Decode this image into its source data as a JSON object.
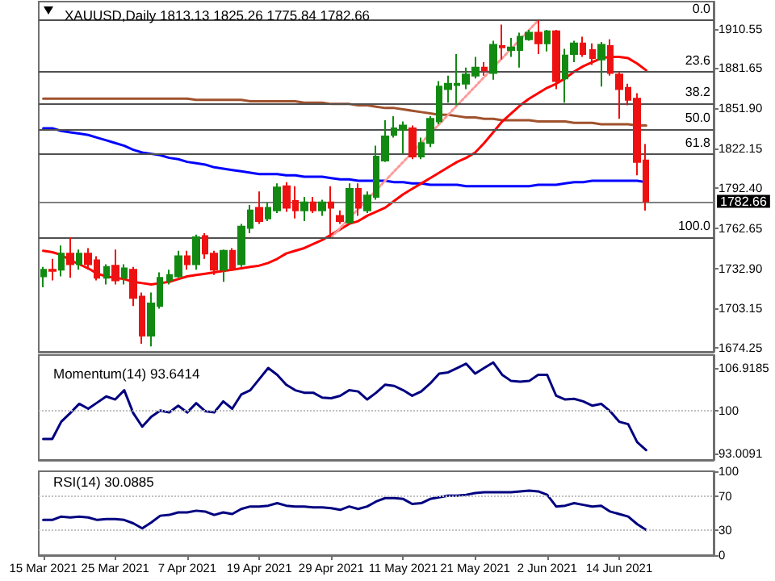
{
  "chart_data": [
    {
      "type": "candlestick",
      "title": "XAUUSD,Daily 1813.13 1825.26 1775.84 1782.66",
      "categories": [
        null,
        null,
        null,
        null,
        null,
        null,
        null,
        null,
        null,
        null,
        null,
        null,
        null,
        null,
        null,
        null,
        null,
        null,
        null,
        null,
        null,
        null,
        null,
        null,
        null,
        null,
        null,
        null,
        null,
        null,
        null,
        null,
        null,
        null,
        null,
        null,
        null,
        null,
        null,
        null,
        null,
        null,
        null,
        null,
        null,
        null,
        null,
        null,
        null,
        null,
        null,
        null,
        null,
        null,
        null,
        null,
        null,
        null,
        null,
        null,
        null,
        null,
        null,
        null,
        null,
        null,
        null,
        null
      ],
      "ylim": [
        1671,
        1931
      ],
      "yticks": [
        1910.55,
        1881.65,
        {
          "value": 1851.9,
          "label": "1851.90"
        },
        1822.15,
        {
          "value": 1792.4,
          "label": "1792.40"
        },
        1762.65,
        {
          "value": 1732.9,
          "label": "1732.90"
        },
        1703.15,
        1674.25
      ],
      "tick_labels": "y",
      "marker": "none",
      "line_style": "solid",
      "series": [
        {
          "type": "line",
          "color": "#0000ff",
          "values": [
            1837,
            1837,
            1835,
            1834,
            1833,
            1832,
            1830,
            1828,
            1826,
            1824,
            1821,
            1819,
            1818,
            1817,
            1815,
            1814,
            1812,
            1811,
            1810,
            1808,
            1807,
            1806,
            1805,
            1804,
            1803,
            1803,
            1803,
            1802,
            1802,
            1801,
            1801,
            1801,
            1800,
            1799,
            1799,
            1798,
            1798,
            1798,
            1798,
            1797,
            1797,
            1796,
            1796,
            1795,
            1795,
            1795,
            1795,
            1794,
            1794,
            1794,
            1794,
            1794,
            1794,
            1794,
            1794,
            1795,
            1795,
            1795,
            1796,
            1797,
            1797,
            1798,
            1798,
            1798,
            1798,
            1798,
            1798,
            1797
          ]
        },
        {
          "type": "line",
          "color": "#a0522d",
          "values": [
            1859,
            1859,
            1859,
            1859,
            1859,
            1859,
            1859,
            1859,
            1859,
            1859,
            1859,
            1859,
            1859,
            1859,
            1859,
            1859,
            1859,
            1858,
            1858,
            1858,
            1858,
            1858,
            1858,
            1857,
            1857,
            1857,
            1857,
            1857,
            1857,
            1856,
            1856,
            1856,
            1855,
            1855,
            1855,
            1854,
            1854,
            1853,
            1852,
            1852,
            1851,
            1850,
            1849,
            1848,
            1847,
            1847,
            1846,
            1845,
            1845,
            1844,
            1844,
            1843,
            1843,
            1843,
            1843,
            1842,
            1842,
            1842,
            1842,
            1841,
            1841,
            1841,
            1840,
            1840,
            1840,
            1840,
            1839,
            1839
          ]
        },
        {
          "type": "line",
          "color": "#ff0000",
          "values": [
            1746,
            1745,
            1743,
            1739,
            1736,
            1733,
            1729,
            1727,
            1726,
            1725,
            1723,
            1722,
            1721,
            1722,
            1723,
            1725,
            1727,
            1728,
            1729,
            1730,
            1731,
            1732,
            1733,
            1734,
            1735,
            1737,
            1740,
            1744,
            1746,
            1748,
            1751,
            1754,
            1758,
            1762,
            1766,
            1768,
            1772,
            1775,
            1778,
            1783,
            1788,
            1792,
            1796,
            1800,
            1804,
            1808,
            1812,
            1815,
            1819,
            1826,
            1834,
            1842,
            1848,
            1854,
            1859,
            1863,
            1867,
            1870,
            1874,
            1879,
            1883,
            1886,
            1889,
            1890,
            1890,
            1889,
            1885,
            1880
          ]
        },
        {
          "type": "line",
          "color": "#ff9999",
          "line_style": "dotted",
          "values": [
            null,
            null,
            null,
            null,
            null,
            null,
            null,
            null,
            null,
            null,
            null,
            null,
            null,
            null,
            null,
            null,
            null,
            null,
            null,
            null,
            null,
            null,
            null,
            null,
            null,
            null,
            null,
            null,
            null,
            null,
            null,
            null,
            1756,
            null,
            null,
            null,
            null,
            null,
            null,
            null,
            null,
            null,
            null,
            null,
            null,
            null,
            null,
            null,
            null,
            null,
            null,
            null,
            null,
            null,
            null,
            1917,
            null,
            null,
            null,
            null,
            null,
            null,
            null,
            null,
            null,
            null,
            null,
            null
          ]
        }
      ],
      "ohlc": [
        [
          1727,
          1734,
          1719,
          1732
        ],
        [
          1732,
          1740,
          1724,
          1731
        ],
        [
          1732,
          1750,
          1727,
          1744
        ],
        [
          1744,
          1756,
          1726,
          1736
        ],
        [
          1736,
          1747,
          1732,
          1744
        ],
        [
          1744,
          1748,
          1732,
          1736
        ],
        [
          1739,
          1742,
          1724,
          1726
        ],
        [
          1726,
          1736,
          1721,
          1734
        ],
        [
          1735,
          1747,
          1721,
          1724
        ],
        [
          1726,
          1736,
          1721,
          1733
        ],
        [
          1732,
          1734,
          1705,
          1711
        ],
        [
          1712,
          1715,
          1677,
          1683
        ],
        [
          1683,
          1715,
          1675,
          1707
        ],
        [
          1705,
          1730,
          1703,
          1726
        ],
        [
          1724,
          1732,
          1721,
          1728
        ],
        [
          1727,
          1746,
          1726,
          1742
        ],
        [
          1742,
          1746,
          1732,
          1736
        ],
        [
          1736,
          1758,
          1732,
          1756
        ],
        [
          1757,
          1759,
          1740,
          1744
        ],
        [
          1744,
          1746,
          1728,
          1732
        ],
        [
          1732,
          1747,
          1723,
          1746
        ],
        [
          1746,
          1748,
          1732,
          1733
        ],
        [
          1736,
          1766,
          1734,
          1764
        ],
        [
          1763,
          1780,
          1759,
          1776
        ],
        [
          1778,
          1790,
          1766,
          1768
        ],
        [
          1770,
          1782,
          1768,
          1778
        ],
        [
          1776,
          1796,
          1774,
          1793
        ],
        [
          1794,
          1797,
          1775,
          1778
        ],
        [
          1783,
          1794,
          1770,
          1776
        ],
        [
          1776,
          1786,
          1768,
          1782
        ],
        [
          1782,
          1786,
          1774,
          1776
        ],
        [
          1776,
          1784,
          1772,
          1782
        ],
        [
          1782,
          1794,
          1756,
          1778
        ],
        [
          1772,
          1776,
          1766,
          1768
        ],
        [
          1767,
          1796,
          1766,
          1792
        ],
        [
          1792,
          1796,
          1772,
          1778
        ],
        [
          1776,
          1790,
          1774,
          1787
        ],
        [
          1786,
          1824,
          1784,
          1816
        ],
        [
          1813,
          1843,
          1812,
          1831
        ],
        [
          1832,
          1846,
          1830,
          1837
        ],
        [
          1836,
          1842,
          1818,
          1839
        ],
        [
          1837,
          1839,
          1814,
          1816
        ],
        [
          1816,
          1830,
          1814,
          1826
        ],
        [
          1826,
          1846,
          1823,
          1844
        ],
        [
          1842,
          1872,
          1840,
          1868
        ],
        [
          1866,
          1876,
          1856,
          1870
        ],
        [
          1869,
          1892,
          1854,
          1870
        ],
        [
          1870,
          1882,
          1866,
          1877
        ],
        [
          1876,
          1890,
          1874,
          1882
        ],
        [
          1882,
          1886,
          1876,
          1880
        ],
        [
          1878,
          1902,
          1873,
          1899
        ],
        [
          1898,
          1914,
          1888,
          1897
        ],
        [
          1895,
          1904,
          1890,
          1897
        ],
        [
          1895,
          1908,
          1882,
          1905
        ],
        [
          1903,
          1910,
          1902,
          1908
        ],
        [
          1908,
          1917,
          1892,
          1900
        ],
        [
          1900,
          1910,
          1894,
          1909
        ],
        [
          1909,
          1910,
          1866,
          1872
        ],
        [
          1874,
          1896,
          1856,
          1891
        ],
        [
          1892,
          1902,
          1886,
          1900
        ],
        [
          1900,
          1905,
          1890,
          1892
        ],
        [
          1895,
          1900,
          1884,
          1889
        ],
        [
          1888,
          1901,
          1868,
          1899
        ],
        [
          1898,
          1903,
          1876,
          1878
        ],
        [
          1877,
          1879,
          1844,
          1866
        ],
        [
          1867,
          1870,
          1854,
          1858
        ],
        [
          1859,
          1863,
          1802,
          1812
        ],
        [
          1813.13,
          1825.26,
          1775.84,
          1782.66
        ]
      ],
      "colors": [
        "#128a12",
        "#ee1111",
        "#128a12",
        "#ee1111",
        "#128a12",
        "#ee1111",
        "#ee1111",
        "#128a12",
        "#ee1111",
        "#128a12",
        "#ee1111",
        "#ee1111",
        "#128a12",
        "#128a12",
        "#128a12",
        "#128a12",
        "#ee1111",
        "#128a12",
        "#ee1111",
        "#ee1111",
        "#128a12",
        "#ee1111",
        "#128a12",
        "#128a12",
        "#ee1111",
        "#128a12",
        "#128a12",
        "#ee1111",
        "#ee1111",
        "#128a12",
        "#ee1111",
        "#128a12",
        "#ee1111",
        "#ee1111",
        "#128a12",
        "#ee1111",
        "#128a12",
        "#128a12",
        "#128a12",
        "#128a12",
        "#128a12",
        "#ee1111",
        "#128a12",
        "#128a12",
        "#128a12",
        "#128a12",
        "#128a12",
        "#128a12",
        "#128a12",
        "#ee1111",
        "#128a12",
        "#ee1111",
        "#128a12",
        "#128a12",
        "#128a12",
        "#ee1111",
        "#128a12",
        "#ee1111",
        "#128a12",
        "#128a12",
        "#ee1111",
        "#ee1111",
        "#128a12",
        "#ee1111",
        "#ee1111",
        "#ee1111",
        "#ee1111",
        "#ee1111"
      ],
      "annotations": [
        {
          "text": "0.0",
          "y": 1917
        },
        {
          "text": "23.6",
          "y": 1879
        },
        {
          "text": "38.2",
          "y": 1855.5
        },
        {
          "text": "50.0",
          "y": 1836.5
        },
        {
          "text": "61.8",
          "y": 1817.5
        },
        {
          "text": "100.0",
          "y": 1756
        }
      ],
      "ref_lines": [
        {
          "axis": "y",
          "value": 1917,
          "color": "#505050"
        },
        {
          "axis": "y",
          "value": 1879,
          "color": "#505050"
        },
        {
          "axis": "y",
          "value": 1855.5,
          "color": "#505050"
        },
        {
          "axis": "y",
          "value": 1836.5,
          "color": "#505050"
        },
        {
          "axis": "y",
          "value": 1817.5,
          "color": "#505050"
        },
        {
          "axis": "y",
          "value": 1756,
          "color": "#505050"
        },
        {
          "axis": "y",
          "value": 1782.66,
          "label": "1782.66",
          "color": "#808080"
        }
      ]
    },
    {
      "type": "line",
      "title": "Momentum(14) 93.6414",
      "categories": [
        null,
        null,
        null,
        null,
        null,
        null,
        null,
        null,
        null,
        null,
        null,
        null,
        null,
        null,
        null,
        null,
        null,
        null,
        null,
        null,
        null,
        null,
        null,
        null,
        null,
        null,
        null,
        null,
        null,
        null,
        null,
        null,
        null,
        null,
        null,
        null,
        null,
        null,
        null,
        null,
        null,
        null,
        null,
        null,
        null,
        null,
        null,
        null,
        null,
        null,
        null,
        null,
        null,
        null,
        null,
        null,
        null,
        null,
        null,
        null,
        null,
        null,
        null,
        null,
        null,
        null,
        null,
        null
      ],
      "ylim": [
        92,
        109
      ],
      "yticks": [
        93.0091,
        100,
        106.9185
      ],
      "tick_labels": "y",
      "marker": "none",
      "series": [
        {
          "color": "#000080",
          "values": [
            95.4,
            95.4,
            98.2,
            99.6,
            101.1,
            100.3,
            101.3,
            102.3,
            101.8,
            103.3,
            99.6,
            97.4,
            99.0,
            100.0,
            99.7,
            100.8,
            99.7,
            101.2,
            99.9,
            99.7,
            101.5,
            100.3,
            102.6,
            103.3,
            105.1,
            106.9,
            105.8,
            104.2,
            103.3,
            102.9,
            102.9,
            102.1,
            102.0,
            102.4,
            103.3,
            103.1,
            101.8,
            102.9,
            104.2,
            104.0,
            103.3,
            102.4,
            103.1,
            104.4,
            106.0,
            106.2,
            106.9,
            107.6,
            106.0,
            106.9,
            107.8,
            105.8,
            104.8,
            104.7,
            104.8,
            105.8,
            105.8,
            102.4,
            101.8,
            101.9,
            101.5,
            100.8,
            101.1,
            99.9,
            98.2,
            97.8,
            94.9,
            93.6
          ]
        }
      ],
      "ref_lines": [
        {
          "axis": "y",
          "value": 100,
          "color": "#c0c0c0",
          "line_style": "dotted"
        }
      ]
    },
    {
      "type": "line",
      "title": "RSI(14) 30.0885",
      "categories": [
        "15 Mar 2021",
        null,
        null,
        null,
        null,
        null,
        null,
        null,
        "25 Mar 2021",
        null,
        null,
        null,
        null,
        null,
        null,
        null,
        "7 Apr 2021",
        null,
        null,
        null,
        null,
        null,
        null,
        null,
        "19 Apr 2021",
        null,
        null,
        null,
        null,
        null,
        null,
        null,
        "29 Apr 2021",
        null,
        null,
        null,
        null,
        null,
        null,
        null,
        "11 May 2021",
        null,
        null,
        null,
        null,
        null,
        null,
        null,
        "21 May 2021",
        null,
        null,
        null,
        null,
        null,
        null,
        null,
        "2 Jun 2021",
        null,
        null,
        null,
        null,
        null,
        null,
        null,
        "14 Jun 2021",
        null,
        null,
        null
      ],
      "ylim": [
        0,
        100
      ],
      "yticks": [
        0,
        30,
        70,
        100
      ],
      "marker": "none",
      "series": [
        {
          "color": "#000080",
          "values": [
            42,
            42,
            46,
            45,
            46,
            45,
            42,
            43,
            43,
            42,
            38,
            32,
            39,
            47,
            48,
            51,
            51,
            53,
            52,
            48,
            51,
            49,
            55,
            58,
            58,
            59,
            62,
            59,
            58,
            58,
            57,
            57,
            56,
            54,
            58,
            55,
            58,
            64,
            68,
            68,
            67,
            61,
            62,
            67,
            69,
            71,
            71,
            72,
            74,
            75,
            75,
            75,
            75,
            76,
            77,
            76,
            72,
            58,
            59,
            62,
            60,
            58,
            59,
            52,
            49,
            46,
            37,
            30
          ]
        }
      ],
      "ref_lines": [
        {
          "axis": "y",
          "value": 30,
          "color": "#c0c0c0",
          "line_style": "dotted"
        },
        {
          "axis": "y",
          "value": 70,
          "color": "#c0c0c0",
          "line_style": "dotted"
        }
      ]
    }
  ]
}
